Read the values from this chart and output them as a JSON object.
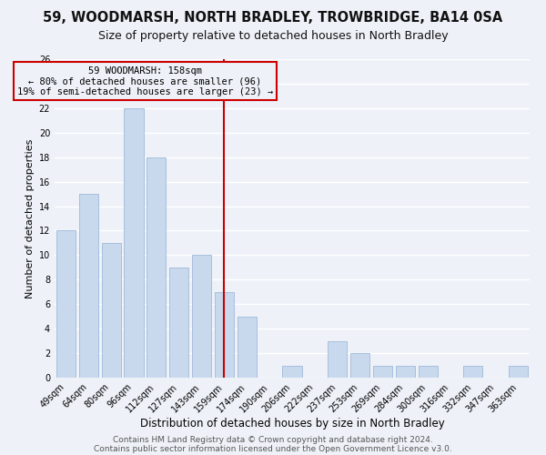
{
  "title1": "59, WOODMARSH, NORTH BRADLEY, TROWBRIDGE, BA14 0SA",
  "title2": "Size of property relative to detached houses in North Bradley",
  "xlabel": "Distribution of detached houses by size in North Bradley",
  "ylabel": "Number of detached properties",
  "categories": [
    "49sqm",
    "64sqm",
    "80sqm",
    "96sqm",
    "112sqm",
    "127sqm",
    "143sqm",
    "159sqm",
    "174sqm",
    "190sqm",
    "206sqm",
    "222sqm",
    "237sqm",
    "253sqm",
    "269sqm",
    "284sqm",
    "300sqm",
    "316sqm",
    "332sqm",
    "347sqm",
    "363sqm"
  ],
  "values": [
    12,
    15,
    11,
    22,
    18,
    9,
    10,
    7,
    5,
    0,
    1,
    0,
    3,
    2,
    1,
    1,
    1,
    0,
    1,
    0,
    1
  ],
  "bar_color": "#c8d9ed",
  "bar_edge_color": "#a0b8d8",
  "vline_x_index": 7,
  "vline_color": "#cc0000",
  "annotation_title": "59 WOODMARSH: 158sqm",
  "annotation_line1": "← 80% of detached houses are smaller (96)",
  "annotation_line2": "19% of semi-detached houses are larger (23) →",
  "annotation_box_edge": "#cc0000",
  "ylim": [
    0,
    26
  ],
  "yticks": [
    0,
    2,
    4,
    6,
    8,
    10,
    12,
    14,
    16,
    18,
    20,
    22,
    24,
    26
  ],
  "footer1": "Contains HM Land Registry data © Crown copyright and database right 2024.",
  "footer2": "Contains public sector information licensed under the Open Government Licence v3.0.",
  "background_color": "#eef2f8",
  "grid_color": "#ffffff",
  "title1_fontsize": 10.5,
  "title2_fontsize": 9,
  "xlabel_fontsize": 8.5,
  "ylabel_fontsize": 8,
  "tick_fontsize": 7,
  "footer_fontsize": 6.5,
  "ann_fontsize": 7.5
}
